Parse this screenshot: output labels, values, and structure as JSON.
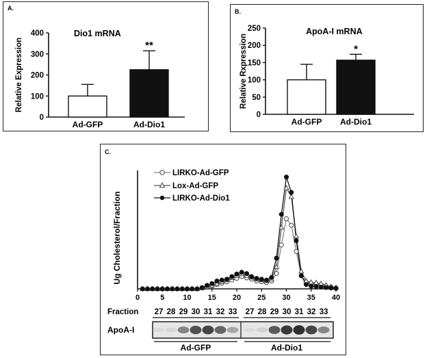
{
  "panels": {
    "A": {
      "letter": "A.",
      "chart_data": {
        "type": "bar",
        "title": "Dio1 mRNA",
        "ylabel": "Relative Expression",
        "categories": [
          "Ad-GFP",
          "Ad-Dio1"
        ],
        "values": [
          100,
          225
        ],
        "errors": [
          55,
          90
        ],
        "significance": [
          "",
          "**"
        ],
        "ylim": [
          0,
          400
        ],
        "yticks": [
          0,
          100,
          200,
          300,
          400
        ],
        "fills": [
          "#ffffff",
          "#111111"
        ]
      }
    },
    "B": {
      "letter": "B.",
      "chart_data": {
        "type": "bar",
        "title": "ApoA-I mRNA",
        "ylabel": "Relative Rxpression",
        "categories": [
          "Ad-GFP",
          "Ad-Dio1"
        ],
        "values": [
          100,
          157
        ],
        "errors": [
          45,
          17
        ],
        "significance": [
          "",
          "*"
        ],
        "ylim": [
          0,
          250
        ],
        "yticks": [
          0,
          50,
          100,
          150,
          200,
          250
        ],
        "fills": [
          "#ffffff",
          "#111111"
        ]
      }
    },
    "C": {
      "letter": "C.",
      "chart_data": {
        "type": "line",
        "ylabel": "Ug Cholesterol/Fraction",
        "xlim": [
          0,
          40
        ],
        "xticks": [
          0,
          5,
          10,
          15,
          20,
          25,
          30,
          35,
          40
        ],
        "x": [
          1,
          2,
          3,
          4,
          5,
          6,
          7,
          8,
          9,
          10,
          11,
          12,
          13,
          14,
          15,
          16,
          17,
          18,
          19,
          20,
          21,
          22,
          23,
          24,
          25,
          26,
          27,
          28,
          29,
          30,
          31,
          32,
          33,
          34,
          35,
          36,
          37,
          38,
          39,
          40
        ],
        "series": [
          {
            "name": "LIRKO-Ad-GFP",
            "marker": "open-circle",
            "values": [
              0,
              0,
              0,
              0,
              0,
              0,
              0,
              0,
              0,
              0,
              0,
              0,
              0.2,
              0.4,
              0.6,
              1.0,
              1.3,
              1.6,
              2.0,
              2.4,
              2.8,
              2.5,
              2.2,
              1.8,
              1.6,
              1.4,
              1.8,
              3.5,
              10.0,
              16.0,
              14.5,
              8.5,
              3.0,
              1.5,
              1.2,
              1.0,
              0.8,
              0.6,
              0.4,
              0.2
            ]
          },
          {
            "name": "Lox-Ad-GFP",
            "marker": "open-triangle",
            "values": [
              0,
              0,
              0,
              0,
              0,
              0,
              0,
              0,
              0,
              0,
              0,
              0,
              0.2,
              0.5,
              0.8,
              1.2,
              1.6,
              2.0,
              2.5,
              3.0,
              3.4,
              3.0,
              2.6,
              2.2,
              2.0,
              1.8,
              2.2,
              5.0,
              14.0,
              23.0,
              21.0,
              12.0,
              4.0,
              1.8,
              1.5,
              1.4,
              1.2,
              0.9,
              0.5,
              0.3
            ]
          },
          {
            "name": "LIRKO-Ad-Dio1",
            "marker": "filled-circle",
            "values": [
              0,
              0,
              0,
              0,
              0,
              0,
              0,
              0,
              0,
              0,
              0,
              0,
              0.3,
              0.8,
              1.2,
              1.8,
              2.0,
              2.2,
              2.8,
              3.4,
              3.8,
              3.5,
              2.8,
              2.4,
              2.2,
              2.0,
              2.6,
              7.0,
              17.0,
              25.5,
              22.0,
              11.0,
              3.0,
              1.0,
              0.6,
              0.5,
              0.4,
              0.3,
              0.2,
              0.1
            ]
          }
        ],
        "yrange": [
          0,
          27
        ]
      },
      "blot": {
        "fraction_label": "Fraction",
        "fractions_left": [
          "27",
          "28",
          "29",
          "30",
          "31",
          "32",
          "33"
        ],
        "fractions_right": [
          "27",
          "28",
          "29",
          "30",
          "31",
          "32",
          "33"
        ],
        "row_label": "ApoA-I",
        "group_left": "Ad-GFP",
        "group_right": "Ad-Dio1",
        "band_intensity_left": [
          0.05,
          0.08,
          0.45,
          0.7,
          0.75,
          0.6,
          0.3
        ],
        "band_intensity_right": [
          0.05,
          0.1,
          0.65,
          0.8,
          0.85,
          0.75,
          0.45
        ]
      }
    }
  }
}
